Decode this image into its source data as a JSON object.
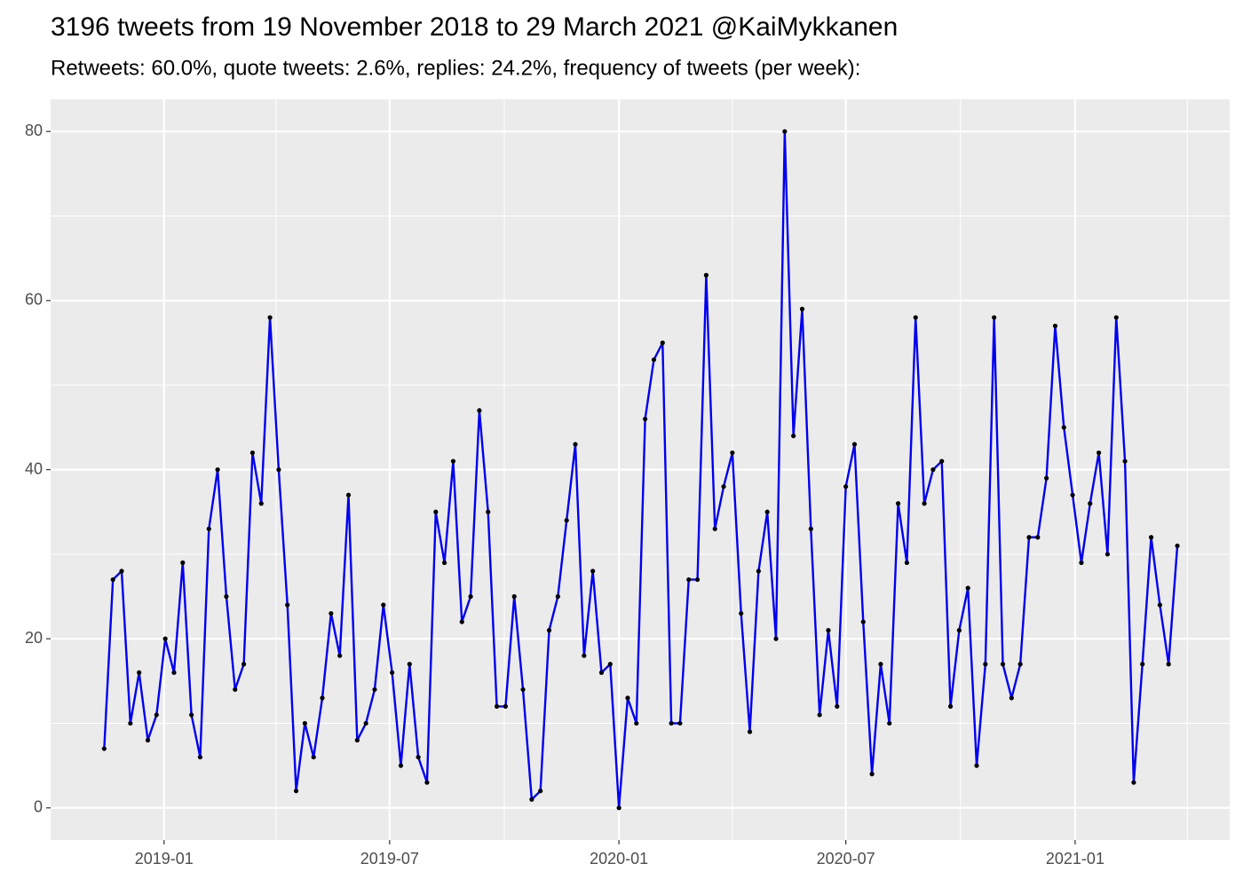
{
  "chart_data": {
    "type": "line",
    "title": "3196 tweets from 19 November 2018 to 29 March 2021 @KaiMykkanen",
    "subtitle": "Retweets: 60.0%, quote tweets: 2.6%, replies: 24.2%, frequency of tweets (per week):",
    "x_start": "2018-11-14",
    "x_step_days": 7,
    "series": [
      {
        "line_color": "#0000ee",
        "point_color": "#000000",
        "values": [
          7,
          27,
          28,
          10,
          16,
          8,
          11,
          20,
          16,
          29,
          11,
          6,
          33,
          40,
          25,
          14,
          17,
          42,
          36,
          58,
          40,
          24,
          2,
          10,
          6,
          13,
          23,
          18,
          37,
          8,
          10,
          14,
          24,
          16,
          5,
          17,
          6,
          3,
          35,
          29,
          41,
          22,
          25,
          47,
          35,
          12,
          12,
          25,
          14,
          1,
          2,
          21,
          25,
          34,
          43,
          18,
          28,
          16,
          17,
          0,
          13,
          10,
          46,
          53,
          55,
          10,
          10,
          27,
          27,
          63,
          33,
          38,
          42,
          23,
          9,
          28,
          35,
          20,
          80,
          44,
          59,
          33,
          11,
          21,
          12,
          38,
          43,
          22,
          4,
          17,
          10,
          36,
          29,
          58,
          36,
          40,
          41,
          12,
          21,
          26,
          5,
          17,
          58,
          17,
          13,
          17,
          32,
          32,
          39,
          57,
          45,
          37,
          29,
          36,
          42,
          30,
          58,
          41,
          3,
          17,
          32,
          24,
          17,
          31
        ]
      }
    ],
    "xlim": [
      "2018-10-02",
      "2021-05-05"
    ],
    "xticks": [
      {
        "value": "2019-01-01",
        "label": "2019-01"
      },
      {
        "value": "2019-07-01",
        "label": "2019-07"
      },
      {
        "value": "2020-01-01",
        "label": "2020-01"
      },
      {
        "value": "2020-07-01",
        "label": "2020-07"
      },
      {
        "value": "2021-01-01",
        "label": "2021-01"
      }
    ],
    "xminor": [
      "2019-04-01",
      "2019-10-01",
      "2020-04-01",
      "2020-10-01",
      "2021-04-01"
    ],
    "ylim": [
      -3.8,
      83.8
    ],
    "yticks": [
      0,
      20,
      40,
      60,
      80
    ],
    "yminor": [
      10,
      30,
      50,
      70
    ],
    "grid": true
  }
}
